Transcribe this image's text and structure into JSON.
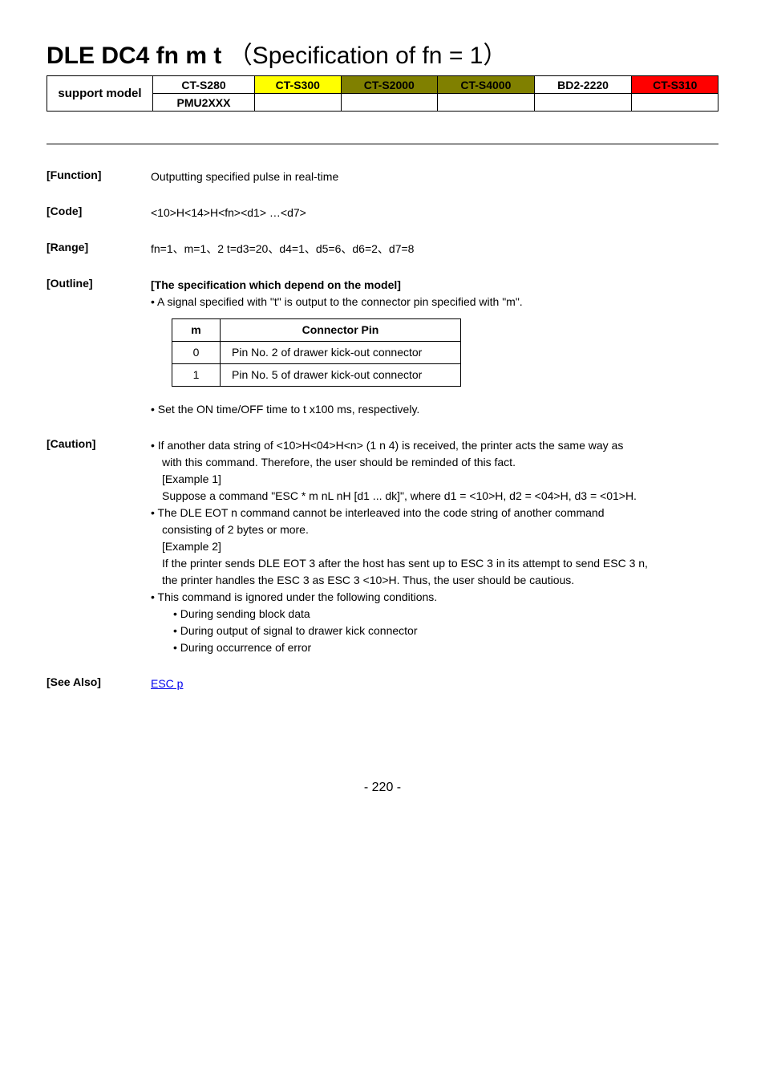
{
  "title_main": "DLE DC4 fn m t",
  "title_sub": "（Specification of fn = 1）",
  "support_label": "support model",
  "support_headers": [
    {
      "text": "CT-S280",
      "class": "hdr-plain"
    },
    {
      "text": "CT-S300",
      "class": "hdr-yellow"
    },
    {
      "text": "CT-S2000",
      "class": "hdr-olive"
    },
    {
      "text": "CT-S4000",
      "class": "hdr-olive"
    },
    {
      "text": "BD2-2220",
      "class": "hdr-plain"
    },
    {
      "text": "CT-S310",
      "class": "hdr-red"
    }
  ],
  "support_row2_first": "PMU2XXX",
  "sec_function_label": "[Function]",
  "sec_function_text": "Outputting specified pulse in real-time",
  "sec_code_label": "[Code]",
  "sec_code_text": "<10>H<14>H<fn><d1> …<d7>",
  "sec_range_label": "[Range]",
  "sec_range_text": "fn=1、m=1、2  t=d3=20、d4=1、d5=6、d6=2、d7=8",
  "sec_outline_label": "[Outline]",
  "sec_outline_bold": "[The specification which depend on the model]",
  "sec_outline_line1": "• A signal specified with \"t\" is output to the connector pin specified with \"m\".",
  "pin_header_m": "m",
  "pin_header_cp": "Connector Pin",
  "pin_rows": [
    {
      "m": "0",
      "text": "Pin No. 2 of drawer kick-out connector"
    },
    {
      "m": "1",
      "text": "Pin No. 5 of drawer kick-out connector"
    }
  ],
  "sec_outline_line2": "• Set the ON time/OFF time to t x100 ms, respectively.",
  "sec_caution_label": "[Caution]",
  "caution_lines": [
    "• If another data string of <10>H<04>H<n> (1 n 4) is received, the printer acts the same way as",
    "with this command. Therefore, the user should be reminded of this fact.",
    "[Example 1]",
    "Suppose a command \"ESC * m nL nH [d1 ... dk]\", where d1 = <10>H, d2 = <04>H, d3 = <01>H.",
    "• The DLE EOT n command cannot be interleaved into the code string of another command",
    "consisting of 2 bytes or more.",
    "[Example 2]",
    "If the printer sends DLE EOT 3 after the host has sent up to ESC 3 in its attempt to send ESC 3 n,",
    "the printer handles the ESC 3 as ESC 3 <10>H. Thus, the user should be cautious.",
    "• This command is ignored under the following conditions.",
    "• During sending block data",
    "• During output of signal to drawer kick connector",
    "• During occurrence of error"
  ],
  "sec_seealso_label": "[See Also]",
  "seealso_link": "ESC p",
  "page_number": "- 220 -"
}
